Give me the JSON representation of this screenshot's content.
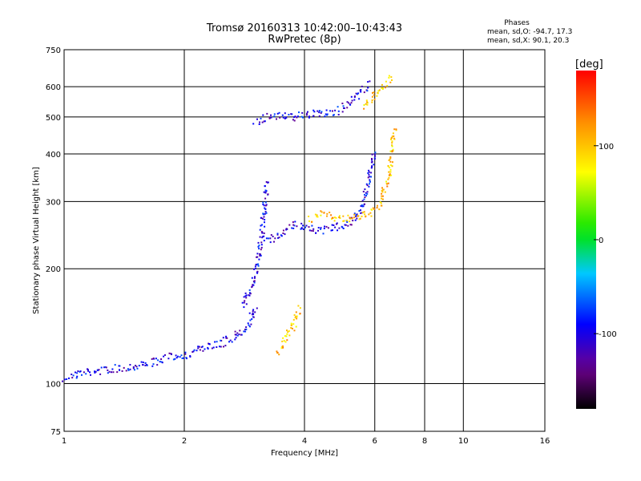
{
  "chart_data": {
    "type": "scatter",
    "title": "Tromsø 20160313 10:42:00–10:43:43",
    "subtitle": "RwPretec (8p)",
    "xlabel": "Frequency [MHz]",
    "ylabel": "Stationary phase Virtual Height [km]",
    "x_scale": "log",
    "y_scale": "log",
    "xlim": [
      1,
      16
    ],
    "ylim": [
      75,
      750
    ],
    "x_ticks": [
      "1",
      "2",
      "4",
      "6",
      "8",
      "10",
      "16"
    ],
    "y_ticks": [
      "75",
      "100",
      "200",
      "300",
      "400",
      "500",
      "600",
      "750"
    ],
    "grid": true,
    "stats": {
      "heading": "Phases",
      "line_o": "mean, sd,O: -94.7, 17.3",
      "line_x": "mean, sd,X:  90.1, 20.3"
    },
    "colorbar": {
      "label": "[deg]",
      "range": [
        -180,
        180
      ],
      "ticks": [
        "100",
        "0",
        "-100"
      ]
    },
    "traces": [
      {
        "phase": -100,
        "points": [
          [
            1.0,
            104
          ],
          [
            1.1,
            107
          ],
          [
            1.25,
            109
          ],
          [
            1.45,
            111
          ],
          [
            1.65,
            114
          ],
          [
            1.85,
            118
          ],
          [
            2.05,
            120
          ],
          [
            2.25,
            125
          ],
          [
            2.45,
            128
          ],
          [
            2.65,
            133
          ],
          [
            2.85,
            140
          ],
          [
            3.0,
            160
          ]
        ]
      },
      {
        "phase": -100,
        "points": [
          [
            2.8,
            160
          ],
          [
            2.95,
            185
          ],
          [
            3.05,
            210
          ],
          [
            3.1,
            240
          ],
          [
            3.15,
            280
          ],
          [
            3.2,
            320
          ],
          [
            3.22,
            340
          ]
        ]
      },
      {
        "phase": -100,
        "points": [
          [
            3.2,
            235
          ],
          [
            3.4,
            245
          ],
          [
            3.6,
            255
          ],
          [
            3.8,
            262
          ],
          [
            4.0,
            255
          ],
          [
            4.4,
            254
          ],
          [
            4.8,
            258
          ],
          [
            5.2,
            266
          ],
          [
            5.5,
            285
          ],
          [
            5.7,
            320
          ],
          [
            5.85,
            370
          ],
          [
            5.95,
            410
          ]
        ]
      },
      {
        "phase": -100,
        "points": [
          [
            3.0,
            490
          ],
          [
            3.2,
            500
          ],
          [
            3.4,
            505
          ],
          [
            3.6,
            505
          ],
          [
            3.8,
            500
          ],
          [
            4.0,
            510
          ],
          [
            4.4,
            512
          ],
          [
            4.8,
            520
          ],
          [
            5.2,
            545
          ],
          [
            5.5,
            580
          ],
          [
            5.8,
            620
          ]
        ]
      },
      {
        "phase": 100,
        "points": [
          [
            4.1,
            270
          ],
          [
            4.4,
            278
          ],
          [
            4.7,
            275
          ],
          [
            5.0,
            272
          ],
          [
            5.4,
            275
          ],
          [
            5.8,
            282
          ],
          [
            6.1,
            295
          ],
          [
            6.3,
            320
          ],
          [
            6.5,
            360
          ],
          [
            6.6,
            420
          ],
          [
            6.7,
            470
          ]
        ]
      },
      {
        "phase": 100,
        "points": [
          [
            5.6,
            540
          ],
          [
            5.8,
            560
          ],
          [
            6.0,
            575
          ],
          [
            6.2,
            595
          ],
          [
            6.4,
            620
          ],
          [
            6.6,
            640
          ]
        ]
      },
      {
        "phase": 100,
        "points": [
          [
            3.4,
            120
          ],
          [
            3.55,
            130
          ],
          [
            3.7,
            140
          ],
          [
            3.8,
            150
          ],
          [
            3.9,
            158
          ]
        ]
      }
    ]
  }
}
